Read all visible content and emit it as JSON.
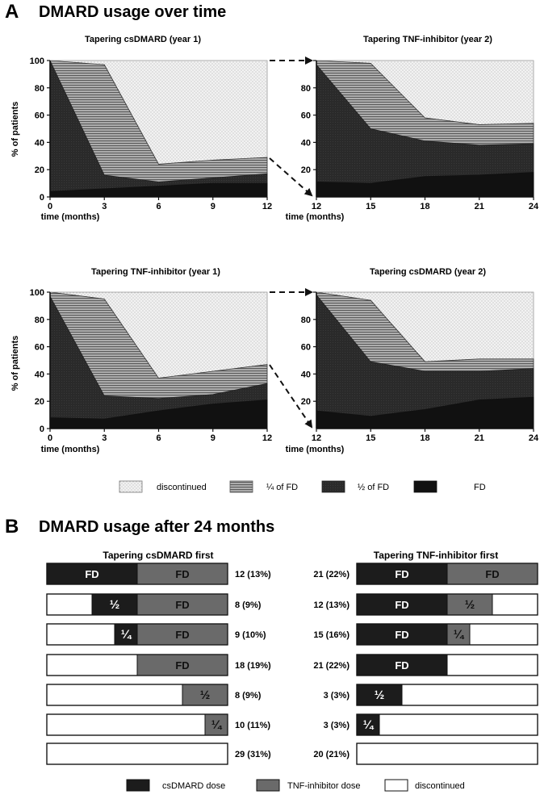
{
  "panel_a": {
    "letter": "A",
    "title": "DMARD usage over time",
    "ylabel": "% of patients",
    "xlabel": "time (months)",
    "yticks": [
      "0",
      "20",
      "40",
      "60",
      "80",
      "100"
    ],
    "legend": [
      {
        "label": "discontinued",
        "pattern": "dots"
      },
      {
        "label": "¼ of FD",
        "pattern": "hlines"
      },
      {
        "label": "½ of FD",
        "pattern": "dark"
      },
      {
        "label": "FD",
        "pattern": "black"
      }
    ]
  },
  "panel_b": {
    "letter": "B",
    "title": "DMARD usage after 24 months",
    "groups": [
      {
        "title": "Tapering csDMARD first",
        "rows": [
          {
            "count": "12 (13%)",
            "segments": [
              {
                "label": "FD",
                "start": 0,
                "end": 0.5,
                "kind": "csdmard"
              },
              {
                "label": "FD",
                "start": 0.5,
                "end": 1.0,
                "kind": "tnf"
              }
            ]
          },
          {
            "count": "8 (9%)",
            "segments": [
              {
                "label": "½",
                "start": 0.25,
                "end": 0.5,
                "kind": "csdmard"
              },
              {
                "label": "FD",
                "start": 0.5,
                "end": 1.0,
                "kind": "tnf"
              }
            ]
          },
          {
            "count": "9 (10%)",
            "segments": [
              {
                "label": "¼",
                "start": 0.375,
                "end": 0.5,
                "kind": "csdmard"
              },
              {
                "label": "FD",
                "start": 0.5,
                "end": 1.0,
                "kind": "tnf"
              }
            ]
          },
          {
            "count": "18 (19%)",
            "segments": [
              {
                "label": "FD",
                "start": 0.5,
                "end": 1.0,
                "kind": "tnf"
              }
            ]
          },
          {
            "count": "8 (9%)",
            "segments": [
              {
                "label": "½",
                "start": 0.75,
                "end": 1.0,
                "kind": "tnf"
              }
            ]
          },
          {
            "count": "10 (11%)",
            "segments": [
              {
                "label": "¼",
                "start": 0.875,
                "end": 1.0,
                "kind": "tnf"
              }
            ]
          },
          {
            "count": "29 (31%)",
            "segments": []
          }
        ]
      },
      {
        "title": "Tapering TNF-inhibitor first",
        "rows": [
          {
            "count": "21 (22%)",
            "segments": [
              {
                "label": "FD",
                "start": 0,
                "end": 0.5,
                "kind": "csdmard"
              },
              {
                "label": "FD",
                "start": 0.5,
                "end": 1.0,
                "kind": "tnf"
              }
            ]
          },
          {
            "count": "12 (13%)",
            "segments": [
              {
                "label": "FD",
                "start": 0,
                "end": 0.5,
                "kind": "csdmard"
              },
              {
                "label": "½",
                "start": 0.5,
                "end": 0.75,
                "kind": "tnf"
              }
            ]
          },
          {
            "count": "15 (16%)",
            "segments": [
              {
                "label": "FD",
                "start": 0,
                "end": 0.5,
                "kind": "csdmard"
              },
              {
                "label": "¼",
                "start": 0.5,
                "end": 0.625,
                "kind": "tnf"
              }
            ]
          },
          {
            "count": "21 (22%)",
            "segments": [
              {
                "label": "FD",
                "start": 0,
                "end": 0.5,
                "kind": "csdmard"
              }
            ]
          },
          {
            "count": "3 (3%)",
            "segments": [
              {
                "label": "½",
                "start": 0,
                "end": 0.25,
                "kind": "csdmard"
              }
            ]
          },
          {
            "count": "3 (3%)",
            "segments": [
              {
                "label": "¼",
                "start": 0,
                "end": 0.125,
                "kind": "csdmard"
              }
            ]
          },
          {
            "count": "20 (21%)",
            "segments": []
          }
        ]
      }
    ],
    "legend": [
      {
        "label": "csDMARD dose",
        "kind": "csdmard"
      },
      {
        "label": "TNF-inhibitor dose",
        "kind": "tnf"
      },
      {
        "label": "discontinued",
        "kind": "none"
      }
    ]
  },
  "colors": {
    "black": "#111111",
    "dark": "#2b2b2b",
    "hlines_bg": "#8c8c8c",
    "dots_bg": "#f2f2f2",
    "csdmard": "#1c1c1c",
    "tnf": "#6a6a6a"
  },
  "chart_data": [
    {
      "type": "area",
      "title": "Tapering csDMARD (year 1)",
      "x": [
        0,
        3,
        6,
        9,
        12
      ],
      "xlabel": "time (months)",
      "ylabel": "% of patients",
      "ylim": [
        0,
        100
      ],
      "series": [
        {
          "name": "FD",
          "values": [
            4,
            6,
            8,
            10,
            10
          ]
        },
        {
          "name": "½ of FD",
          "values": [
            100,
            16,
            11,
            14,
            17
          ]
        },
        {
          "name": "¼ of FD",
          "values": [
            100,
            97,
            24,
            27,
            29
          ]
        },
        {
          "name": "discontinued",
          "values": [
            100,
            100,
            100,
            100,
            100
          ]
        }
      ]
    },
    {
      "type": "area",
      "title": "Tapering TNF-inhibitor (year 2)",
      "x": [
        12,
        15,
        18,
        21,
        24
      ],
      "xlabel": "time (months)",
      "ylabel": "% of patients",
      "ylim": [
        0,
        100
      ],
      "series": [
        {
          "name": "FD",
          "values": [
            11,
            10,
            15,
            16,
            18
          ]
        },
        {
          "name": "½ of FD",
          "values": [
            97,
            50,
            41,
            38,
            39
          ]
        },
        {
          "name": "¼ of FD",
          "values": [
            100,
            98,
            58,
            53,
            54
          ]
        },
        {
          "name": "discontinued",
          "values": [
            100,
            100,
            100,
            100,
            100
          ]
        }
      ]
    },
    {
      "type": "area",
      "title": "Tapering TNF-inhibitor (year 1)",
      "x": [
        0,
        3,
        6,
        9,
        12
      ],
      "xlabel": "time (months)",
      "ylabel": "% of patients",
      "ylim": [
        0,
        100
      ],
      "series": [
        {
          "name": "FD",
          "values": [
            8,
            7,
            13,
            18,
            21
          ]
        },
        {
          "name": "½ of FD",
          "values": [
            97,
            24,
            22,
            25,
            33
          ]
        },
        {
          "name": "¼ of FD",
          "values": [
            100,
            95,
            37,
            42,
            47
          ]
        },
        {
          "name": "discontinued",
          "values": [
            100,
            100,
            100,
            100,
            100
          ]
        }
      ]
    },
    {
      "type": "area",
      "title": "Tapering csDMARD (year 2)",
      "x": [
        12,
        15,
        18,
        21,
        24
      ],
      "xlabel": "time (months)",
      "ylabel": "% of patients",
      "ylim": [
        0,
        100
      ],
      "series": [
        {
          "name": "FD",
          "values": [
            13,
            9,
            14,
            21,
            23
          ]
        },
        {
          "name": "½ of FD",
          "values": [
            98,
            49,
            42,
            42,
            44
          ]
        },
        {
          "name": "¼ of FD",
          "values": [
            100,
            94,
            49,
            51,
            51
          ]
        },
        {
          "name": "discontinued",
          "values": [
            100,
            100,
            100,
            100,
            100
          ]
        }
      ]
    }
  ]
}
